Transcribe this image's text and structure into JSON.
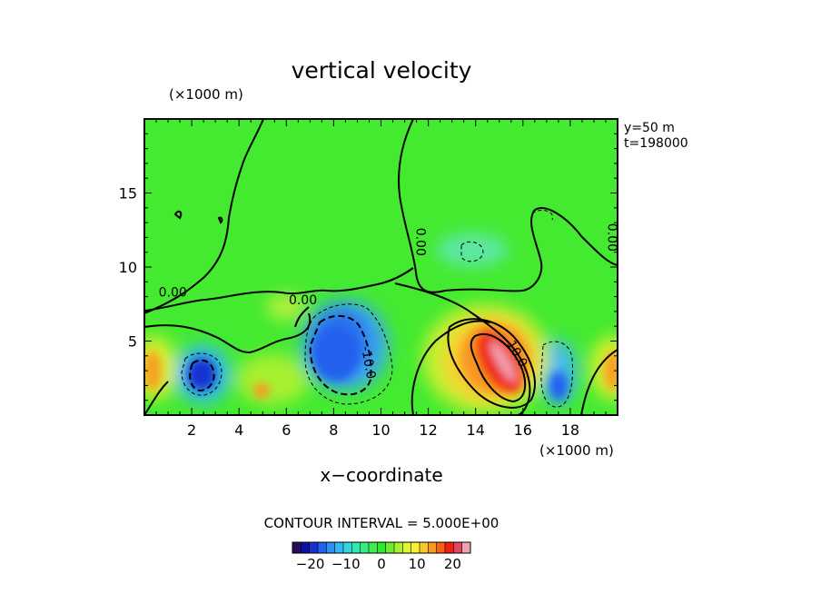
{
  "chart_data": {
    "type": "heatmap",
    "title": "vertical velocity",
    "xlabel": "x−coordinate",
    "x_unit": "(×1000 m)",
    "y_unit": "(×1000 m)",
    "annotations": [
      "y=50  m",
      "t=198000"
    ],
    "contour_interval_label": "CONTOUR INTERVAL = 5.000E+00",
    "xlim": [
      0,
      20
    ],
    "ylim": [
      0,
      20
    ],
    "x_ticks": [
      2,
      4,
      6,
      8,
      10,
      12,
      14,
      16,
      18
    ],
    "y_ticks": [
      5,
      10,
      15
    ],
    "x_tick_labels": [
      "2",
      "4",
      "6",
      "8",
      "10",
      "12",
      "14",
      "16",
      "18"
    ],
    "y_tick_labels": [
      "5",
      "10",
      "15"
    ],
    "contour_labels": [
      {
        "text": "0.00",
        "x": 1.2,
        "y": 8.0
      },
      {
        "text": "0.00",
        "x": 6.7,
        "y": 7.5
      },
      {
        "text": "0.00",
        "x": 11.5,
        "y": 11.7
      },
      {
        "text": "0.00",
        "x": 19.6,
        "y": 12.0
      },
      {
        "text": "-10.0",
        "x": 9.3,
        "y": 3.5
      },
      {
        "text": "10.0",
        "x": 15.6,
        "y": 4.0
      }
    ],
    "colorbar": {
      "min": -25,
      "max": 25,
      "colors": [
        "#2a0a5a",
        "#1010a0",
        "#1830d0",
        "#2060ee",
        "#2c90f4",
        "#30b8f4",
        "#30d8dc",
        "#30e8b0",
        "#30ee80",
        "#40ec50",
        "#30e830",
        "#70ec30",
        "#a8f030",
        "#dcf830",
        "#f8f030",
        "#f8c828",
        "#f89820",
        "#f86018",
        "#f02010",
        "#e04860",
        "#f0a0b0"
      ],
      "tick_values": [
        -20,
        -10,
        0,
        10,
        20
      ],
      "tick_labels": [
        "−20",
        "−10",
        "0",
        "10",
        "20"
      ]
    },
    "features": [
      {
        "kind": "updraft",
        "x": 15.2,
        "y": 3.0,
        "peak": 25
      },
      {
        "kind": "downdraft",
        "x": 8.1,
        "y": 3.8,
        "peak": -15
      },
      {
        "kind": "downdraft",
        "x": 2.5,
        "y": 2.3,
        "peak": -20
      },
      {
        "kind": "downdraft",
        "x": 17.5,
        "y": 1.8,
        "peak": -15
      },
      {
        "kind": "updraft",
        "x": 0.3,
        "y": 2.7,
        "peak": 12
      },
      {
        "kind": "updraft",
        "x": 19.8,
        "y": 2.6,
        "peak": 12
      },
      {
        "kind": "updraft",
        "x": 5.4,
        "y": 2.0,
        "peak": 10
      },
      {
        "kind": "updraft",
        "x": 6.8,
        "y": 7.6,
        "peak": 6
      },
      {
        "kind": "downdraft",
        "x": 13.3,
        "y": 11.3,
        "peak": -5
      }
    ]
  }
}
